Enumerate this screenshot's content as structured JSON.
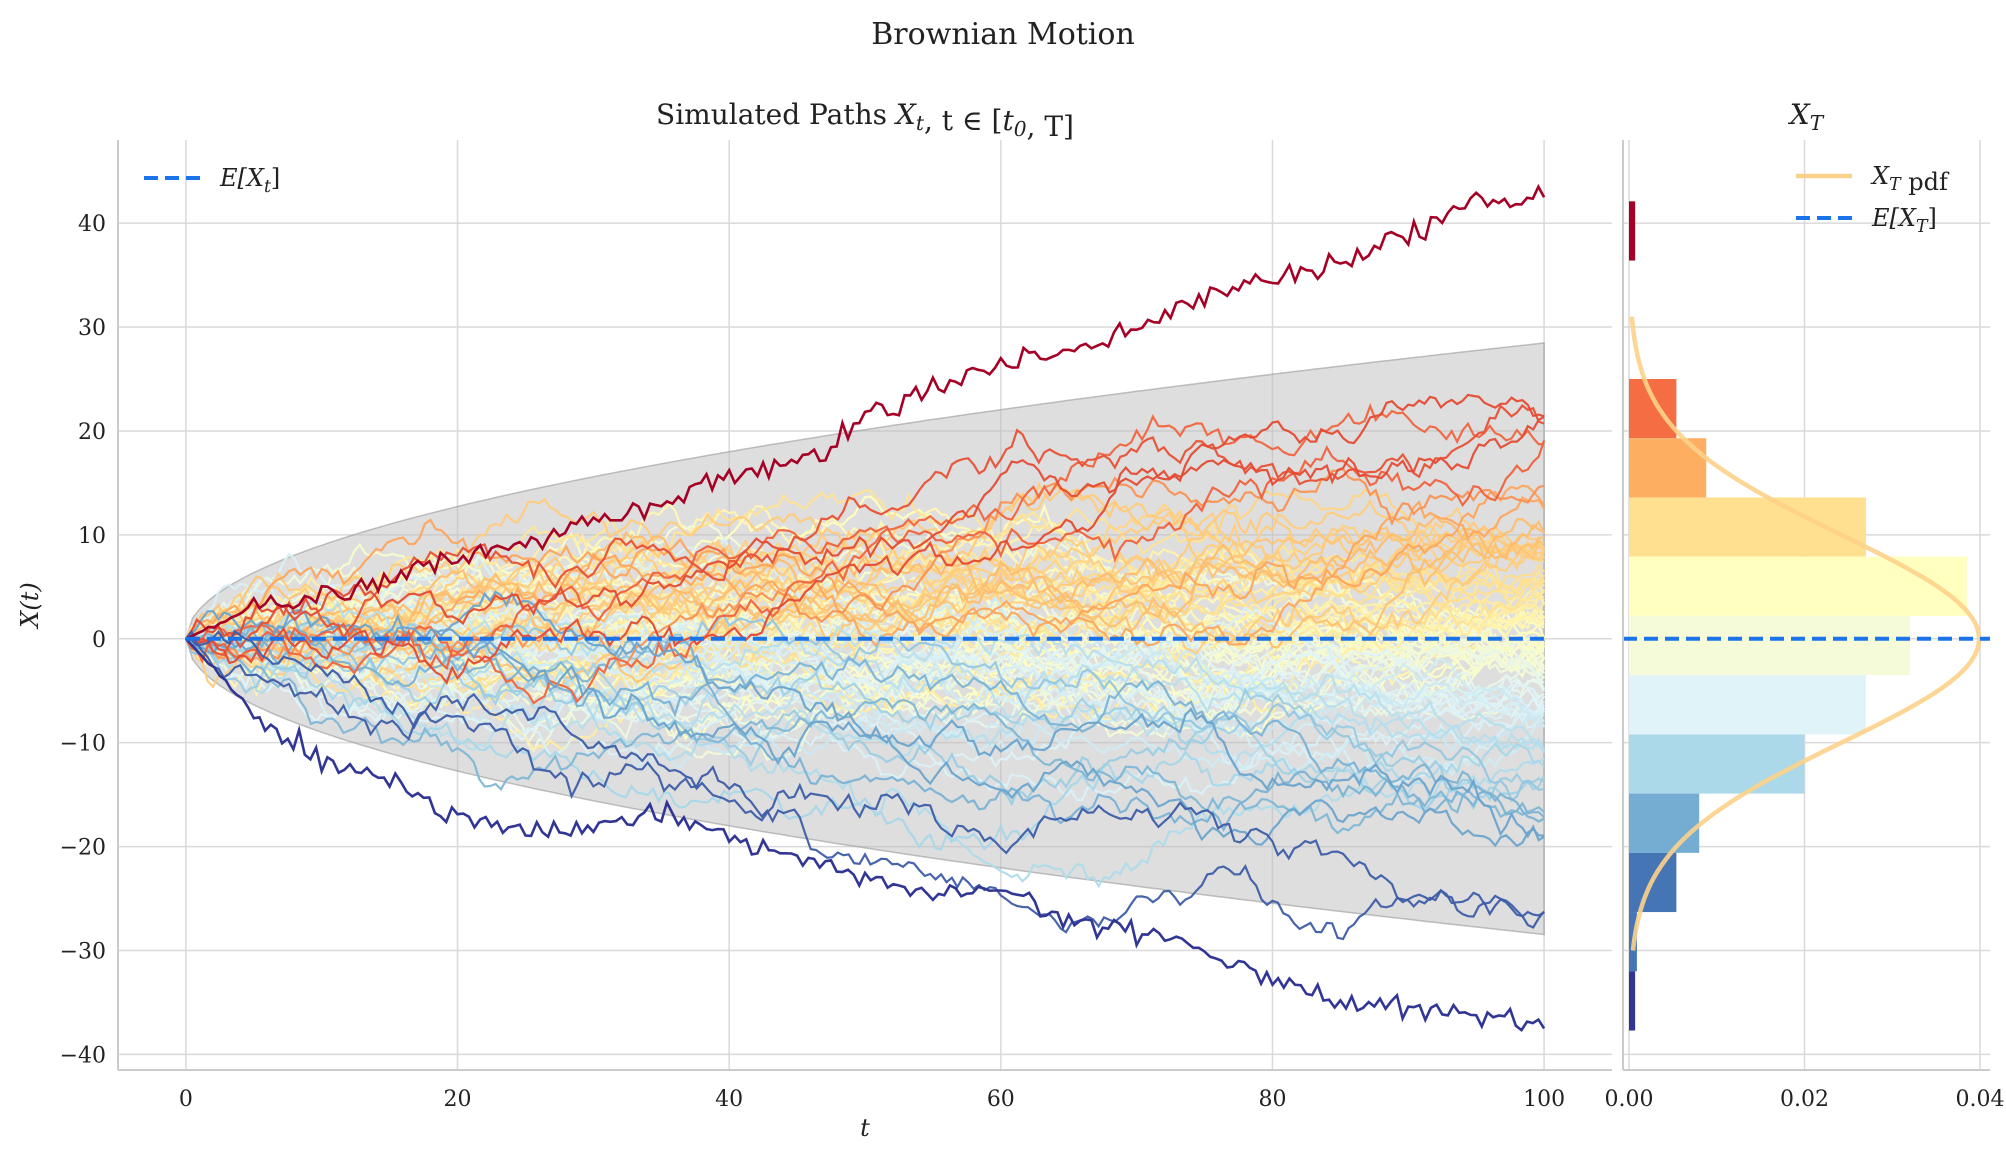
{
  "figure": {
    "suptitle": "Brownian Motion"
  },
  "chart_data": [
    {
      "id": "paths",
      "type": "line",
      "title": "Simulated Paths X_t, t ∈ [t_0, T]",
      "xlabel": "t",
      "ylabel": "X(t)",
      "xlim": [
        -5,
        105
      ],
      "ylim": [
        -41.5,
        48
      ],
      "xticks": [
        0,
        20,
        40,
        60,
        80,
        100
      ],
      "xtick_labels": [
        "0",
        "20",
        "40",
        "60",
        "80",
        "100"
      ],
      "yticks": [
        -40,
        -30,
        -20,
        -10,
        0,
        10,
        20,
        30,
        40
      ],
      "ytick_labels": [
        "−40",
        "−30",
        "−20",
        "−10",
        "0",
        "10",
        "20",
        "30",
        "40"
      ],
      "grid": true,
      "legend": {
        "placement": "top-left",
        "entries": [
          "E[X_t]"
        ]
      },
      "n_paths": 100,
      "t_range": [
        0,
        100
      ],
      "expected_value": 0,
      "band": {
        "lower": "-3*sqrt(t*0.9)",
        "upper": "3*sqrt(t*0.9)",
        "color": "#bdbdbd"
      },
      "highlight_paths": [
        {
          "role": "max",
          "t": [
            0,
            5,
            10,
            15,
            20,
            25,
            30,
            35,
            40,
            45,
            50,
            55,
            60,
            65,
            70,
            75,
            80,
            85,
            90,
            95,
            100
          ],
          "values": [
            0,
            3,
            4,
            6,
            8,
            9,
            11,
            13,
            16,
            17,
            21,
            24,
            26,
            28,
            30,
            33,
            35,
            36,
            39,
            42,
            42.5
          ],
          "color": "#a50026"
        },
        {
          "role": "min",
          "t": [
            0,
            5,
            10,
            15,
            20,
            25,
            30,
            35,
            40,
            45,
            50,
            55,
            60,
            65,
            70,
            75,
            80,
            85,
            90,
            95,
            100
          ],
          "values": [
            0,
            -7,
            -12,
            -14,
            -17,
            -19,
            -18,
            -17,
            -19,
            -21,
            -23,
            -25,
            -24,
            -27,
            -28,
            -30,
            -33,
            -35,
            -35.5,
            -36,
            -37.5
          ],
          "color": "#313695"
        }
      ],
      "expectation_line": {
        "value": 0,
        "color": "#1a73e8"
      }
    },
    {
      "id": "terminal",
      "type": "bar",
      "title": "X_T",
      "orientation": "horizontal",
      "xlim": [
        0,
        0.04
      ],
      "xticks": [
        0,
        0.02,
        0.04
      ],
      "xtick_labels": [
        "0.00",
        "0.02",
        "0.04"
      ],
      "grid": true,
      "legend": {
        "placement": "top-right",
        "entries": [
          "X_T pdf",
          "E[X_T]"
        ]
      },
      "bins": [
        {
          "y0": 36.4,
          "y1": 42.1,
          "density": 0.0007,
          "color": "#a50026"
        },
        {
          "y0": 19.3,
          "y1": 25.0,
          "density": 0.0054,
          "color": "#f46d43"
        },
        {
          "y0": 13.6,
          "y1": 19.3,
          "density": 0.0088,
          "color": "#fdae61"
        },
        {
          "y0": 7.9,
          "y1": 13.6,
          "density": 0.027,
          "color": "#fee090"
        },
        {
          "y0": 2.2,
          "y1": 7.9,
          "density": 0.0385,
          "color": "#ffffbf"
        },
        {
          "y0": -3.5,
          "y1": 2.2,
          "density": 0.032,
          "color": "#f5fbd8"
        },
        {
          "y0": -9.2,
          "y1": -3.5,
          "density": 0.027,
          "color": "#e0f3f8"
        },
        {
          "y0": -14.9,
          "y1": -9.2,
          "density": 0.02,
          "color": "#abd9e9"
        },
        {
          "y0": -20.6,
          "y1": -14.9,
          "density": 0.008,
          "color": "#74add1"
        },
        {
          "y0": -26.3,
          "y1": -20.6,
          "density": 0.0054,
          "color": "#4575b4"
        },
        {
          "y0": -32.0,
          "y1": -26.3,
          "density": 0.0009,
          "color": "#4575b4"
        },
        {
          "y0": -37.7,
          "y1": -32.0,
          "density": 0.0007,
          "color": "#313695"
        }
      ],
      "pdf": {
        "mean": 0,
        "std": 10,
        "color": "#fdd18a"
      },
      "expectation_line": {
        "value": 0,
        "color": "#1a73e8"
      }
    }
  ]
}
